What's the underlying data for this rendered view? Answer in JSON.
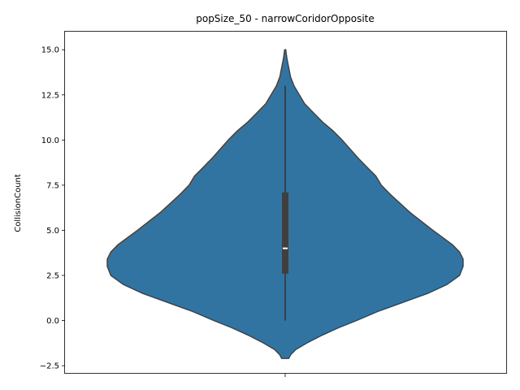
{
  "chart_data": {
    "type": "violin",
    "title": "popSize_50 - narrowCoridorOpposite",
    "xlabel": "",
    "ylabel": "CollisionCount",
    "ylim": [
      -2.9,
      16.0
    ],
    "yticks": [
      -2.5,
      0.0,
      2.5,
      5.0,
      7.5,
      10.0,
      12.5,
      15.0
    ],
    "ytick_labels": [
      "−2.5",
      "0.0",
      "2.5",
      "5.0",
      "7.5",
      "10.0",
      "12.5",
      "15.0"
    ],
    "series": [
      {
        "color": "#3274a1",
        "density": [
          [
            -2.1,
            0.02
          ],
          [
            -1.9,
            0.03
          ],
          [
            -1.6,
            0.06
          ],
          [
            -1.2,
            0.13
          ],
          [
            -0.8,
            0.21
          ],
          [
            -0.4,
            0.3
          ],
          [
            0.0,
            0.4
          ],
          [
            0.5,
            0.52
          ],
          [
            1.0,
            0.66
          ],
          [
            1.5,
            0.8
          ],
          [
            2.0,
            0.91
          ],
          [
            2.5,
            0.98
          ],
          [
            3.0,
            1.0
          ],
          [
            3.4,
            1.0
          ],
          [
            3.8,
            0.98
          ],
          [
            4.2,
            0.94
          ],
          [
            5.0,
            0.83
          ],
          [
            6.0,
            0.7
          ],
          [
            7.0,
            0.59
          ],
          [
            7.5,
            0.54
          ],
          [
            8.0,
            0.51
          ],
          [
            8.5,
            0.46
          ],
          [
            9.0,
            0.41
          ],
          [
            10.0,
            0.32
          ],
          [
            10.5,
            0.27
          ],
          [
            11.0,
            0.21
          ],
          [
            11.5,
            0.16
          ],
          [
            12.0,
            0.11
          ],
          [
            12.5,
            0.08
          ],
          [
            13.0,
            0.05
          ],
          [
            13.5,
            0.03
          ],
          [
            14.0,
            0.02
          ],
          [
            14.5,
            0.01
          ],
          [
            15.0,
            0.003
          ]
        ],
        "whisker": [
          0.0,
          13.0
        ],
        "quartiles": [
          2.6,
          7.1
        ],
        "median": 4.0
      }
    ]
  }
}
